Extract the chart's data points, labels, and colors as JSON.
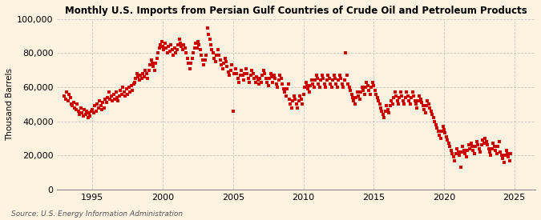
{
  "title": "Monthly U.S. Imports from Persian Gulf Countries of Crude Oil and Petroleum Products",
  "ylabel": "Thousand Barrels",
  "source": "Source: U.S. Energy Information Administration",
  "dot_color": "#cc0000",
  "background_color": "#fdf3e0",
  "grid_color": "#bbbbbb",
  "ylim": [
    0,
    100000
  ],
  "yticks": [
    0,
    20000,
    40000,
    60000,
    80000,
    100000
  ],
  "ytick_labels": [
    "0",
    "20,000",
    "40,000",
    "60,000",
    "80,000",
    "100,000"
  ],
  "xticks": [
    1995,
    2000,
    2005,
    2010,
    2015,
    2020,
    2025
  ],
  "xlim": [
    1992.5,
    2026.5
  ],
  "data": [
    [
      1993.0,
      55000
    ],
    [
      1993.08,
      53000
    ],
    [
      1993.17,
      57000
    ],
    [
      1993.25,
      52000
    ],
    [
      1993.33,
      56000
    ],
    [
      1993.42,
      54000
    ],
    [
      1993.5,
      50000
    ],
    [
      1993.58,
      49000
    ],
    [
      1993.67,
      51000
    ],
    [
      1993.75,
      48000
    ],
    [
      1993.83,
      47000
    ],
    [
      1993.92,
      50000
    ],
    [
      1994.0,
      46000
    ],
    [
      1994.08,
      44000
    ],
    [
      1994.17,
      48000
    ],
    [
      1994.25,
      45000
    ],
    [
      1994.33,
      43000
    ],
    [
      1994.42,
      47000
    ],
    [
      1994.5,
      44000
    ],
    [
      1994.58,
      46000
    ],
    [
      1994.67,
      42000
    ],
    [
      1994.75,
      45000
    ],
    [
      1994.83,
      43000
    ],
    [
      1994.92,
      46000
    ],
    [
      1995.0,
      47000
    ],
    [
      1995.08,
      45000
    ],
    [
      1995.17,
      49000
    ],
    [
      1995.25,
      46000
    ],
    [
      1995.33,
      50000
    ],
    [
      1995.42,
      48000
    ],
    [
      1995.5,
      52000
    ],
    [
      1995.58,
      49000
    ],
    [
      1995.67,
      47000
    ],
    [
      1995.75,
      51000
    ],
    [
      1995.83,
      48000
    ],
    [
      1995.92,
      53000
    ],
    [
      1996.0,
      51000
    ],
    [
      1996.08,
      54000
    ],
    [
      1996.17,
      57000
    ],
    [
      1996.25,
      53000
    ],
    [
      1996.33,
      55000
    ],
    [
      1996.42,
      52000
    ],
    [
      1996.5,
      56000
    ],
    [
      1996.58,
      53000
    ],
    [
      1996.67,
      57000
    ],
    [
      1996.75,
      54000
    ],
    [
      1996.83,
      52000
    ],
    [
      1996.92,
      55000
    ],
    [
      1997.0,
      58000
    ],
    [
      1997.08,
      56000
    ],
    [
      1997.17,
      60000
    ],
    [
      1997.25,
      57000
    ],
    [
      1997.33,
      55000
    ],
    [
      1997.42,
      59000
    ],
    [
      1997.5,
      56000
    ],
    [
      1997.58,
      60000
    ],
    [
      1997.67,
      57000
    ],
    [
      1997.75,
      61000
    ],
    [
      1997.83,
      58000
    ],
    [
      1997.92,
      62000
    ],
    [
      1998.0,
      63000
    ],
    [
      1998.08,
      65000
    ],
    [
      1998.17,
      68000
    ],
    [
      1998.25,
      66000
    ],
    [
      1998.33,
      64000
    ],
    [
      1998.42,
      67000
    ],
    [
      1998.5,
      65000
    ],
    [
      1998.58,
      68000
    ],
    [
      1998.67,
      66000
    ],
    [
      1998.75,
      70000
    ],
    [
      1998.83,
      68000
    ],
    [
      1998.92,
      65000
    ],
    [
      1999.0,
      70000
    ],
    [
      1999.08,
      73000
    ],
    [
      1999.17,
      76000
    ],
    [
      1999.25,
      74000
    ],
    [
      1999.33,
      72000
    ],
    [
      1999.42,
      70000
    ],
    [
      1999.5,
      74000
    ],
    [
      1999.58,
      77000
    ],
    [
      1999.67,
      80000
    ],
    [
      1999.75,
      83000
    ],
    [
      1999.83,
      85000
    ],
    [
      1999.92,
      87000
    ],
    [
      2000.0,
      84000
    ],
    [
      2000.08,
      82000
    ],
    [
      2000.17,
      86000
    ],
    [
      2000.25,
      83000
    ],
    [
      2000.33,
      80000
    ],
    [
      2000.42,
      84000
    ],
    [
      2000.5,
      81000
    ],
    [
      2000.58,
      85000
    ],
    [
      2000.67,
      82000
    ],
    [
      2000.75,
      79000
    ],
    [
      2000.83,
      83000
    ],
    [
      2000.92,
      80000
    ],
    [
      2001.0,
      82000
    ],
    [
      2001.08,
      85000
    ],
    [
      2001.17,
      88000
    ],
    [
      2001.25,
      86000
    ],
    [
      2001.33,
      84000
    ],
    [
      2001.42,
      82000
    ],
    [
      2001.5,
      85000
    ],
    [
      2001.58,
      83000
    ],
    [
      2001.67,
      80000
    ],
    [
      2001.75,
      77000
    ],
    [
      2001.83,
      74000
    ],
    [
      2001.92,
      71000
    ],
    [
      2002.0,
      74000
    ],
    [
      2002.08,
      77000
    ],
    [
      2002.17,
      80000
    ],
    [
      2002.25,
      83000
    ],
    [
      2002.33,
      86000
    ],
    [
      2002.42,
      83000
    ],
    [
      2002.5,
      87000
    ],
    [
      2002.58,
      85000
    ],
    [
      2002.67,
      82000
    ],
    [
      2002.75,
      79000
    ],
    [
      2002.83,
      76000
    ],
    [
      2002.92,
      73000
    ],
    [
      2003.0,
      76000
    ],
    [
      2003.08,
      79000
    ],
    [
      2003.17,
      95000
    ],
    [
      2003.25,
      91000
    ],
    [
      2003.33,
      88000
    ],
    [
      2003.42,
      85000
    ],
    [
      2003.5,
      82000
    ],
    [
      2003.58,
      80000
    ],
    [
      2003.67,
      77000
    ],
    [
      2003.75,
      75000
    ],
    [
      2003.83,
      79000
    ],
    [
      2003.92,
      82000
    ],
    [
      2004.0,
      79000
    ],
    [
      2004.08,
      76000
    ],
    [
      2004.17,
      73000
    ],
    [
      2004.25,
      71000
    ],
    [
      2004.33,
      74000
    ],
    [
      2004.42,
      77000
    ],
    [
      2004.5,
      75000
    ],
    [
      2004.58,
      72000
    ],
    [
      2004.67,
      69000
    ],
    [
      2004.75,
      67000
    ],
    [
      2004.83,
      70000
    ],
    [
      2004.92,
      73000
    ],
    [
      2005.0,
      46000
    ],
    [
      2005.08,
      68000
    ],
    [
      2005.17,
      71000
    ],
    [
      2005.25,
      68000
    ],
    [
      2005.33,
      65000
    ],
    [
      2005.42,
      63000
    ],
    [
      2005.5,
      67000
    ],
    [
      2005.58,
      70000
    ],
    [
      2005.67,
      67000
    ],
    [
      2005.75,
      64000
    ],
    [
      2005.83,
      68000
    ],
    [
      2005.92,
      71000
    ],
    [
      2006.0,
      68000
    ],
    [
      2006.08,
      65000
    ],
    [
      2006.17,
      63000
    ],
    [
      2006.25,
      67000
    ],
    [
      2006.33,
      70000
    ],
    [
      2006.42,
      68000
    ],
    [
      2006.5,
      65000
    ],
    [
      2006.58,
      63000
    ],
    [
      2006.67,
      66000
    ],
    [
      2006.75,
      64000
    ],
    [
      2006.83,
      62000
    ],
    [
      2006.92,
      65000
    ],
    [
      2007.0,
      63000
    ],
    [
      2007.08,
      67000
    ],
    [
      2007.17,
      70000
    ],
    [
      2007.25,
      68000
    ],
    [
      2007.33,
      65000
    ],
    [
      2007.42,
      63000
    ],
    [
      2007.5,
      61000
    ],
    [
      2007.58,
      65000
    ],
    [
      2007.67,
      68000
    ],
    [
      2007.75,
      66000
    ],
    [
      2007.83,
      63000
    ],
    [
      2007.92,
      67000
    ],
    [
      2008.0,
      65000
    ],
    [
      2008.08,
      62000
    ],
    [
      2008.17,
      60000
    ],
    [
      2008.25,
      64000
    ],
    [
      2008.33,
      67000
    ],
    [
      2008.42,
      65000
    ],
    [
      2008.5,
      62000
    ],
    [
      2008.58,
      59000
    ],
    [
      2008.67,
      57000
    ],
    [
      2008.75,
      55000
    ],
    [
      2008.83,
      59000
    ],
    [
      2008.92,
      62000
    ],
    [
      2009.0,
      53000
    ],
    [
      2009.08,
      50000
    ],
    [
      2009.17,
      48000
    ],
    [
      2009.25,
      52000
    ],
    [
      2009.33,
      55000
    ],
    [
      2009.42,
      53000
    ],
    [
      2009.5,
      50000
    ],
    [
      2009.58,
      48000
    ],
    [
      2009.67,
      52000
    ],
    [
      2009.75,
      55000
    ],
    [
      2009.83,
      53000
    ],
    [
      2009.92,
      50000
    ],
    [
      2010.0,
      56000
    ],
    [
      2010.08,
      60000
    ],
    [
      2010.17,
      63000
    ],
    [
      2010.25,
      61000
    ],
    [
      2010.33,
      59000
    ],
    [
      2010.42,
      57000
    ],
    [
      2010.5,
      61000
    ],
    [
      2010.58,
      64000
    ],
    [
      2010.67,
      62000
    ],
    [
      2010.75,
      60000
    ],
    [
      2010.83,
      64000
    ],
    [
      2010.92,
      67000
    ],
    [
      2011.0,
      65000
    ],
    [
      2011.08,
      62000
    ],
    [
      2011.17,
      60000
    ],
    [
      2011.25,
      64000
    ],
    [
      2011.33,
      67000
    ],
    [
      2011.42,
      65000
    ],
    [
      2011.5,
      62000
    ],
    [
      2011.58,
      60000
    ],
    [
      2011.67,
      64000
    ],
    [
      2011.75,
      67000
    ],
    [
      2011.83,
      65000
    ],
    [
      2011.92,
      62000
    ],
    [
      2012.0,
      60000
    ],
    [
      2012.08,
      64000
    ],
    [
      2012.17,
      67000
    ],
    [
      2012.25,
      65000
    ],
    [
      2012.33,
      62000
    ],
    [
      2012.42,
      60000
    ],
    [
      2012.5,
      64000
    ],
    [
      2012.58,
      67000
    ],
    [
      2012.67,
      65000
    ],
    [
      2012.75,
      62000
    ],
    [
      2012.83,
      60000
    ],
    [
      2012.92,
      64000
    ],
    [
      2013.0,
      80000
    ],
    [
      2013.08,
      67000
    ],
    [
      2013.17,
      62000
    ],
    [
      2013.25,
      60000
    ],
    [
      2013.33,
      58000
    ],
    [
      2013.42,
      56000
    ],
    [
      2013.5,
      54000
    ],
    [
      2013.58,
      52000
    ],
    [
      2013.67,
      50000
    ],
    [
      2013.75,
      54000
    ],
    [
      2013.83,
      57000
    ],
    [
      2013.92,
      55000
    ],
    [
      2014.0,
      53000
    ],
    [
      2014.08,
      57000
    ],
    [
      2014.17,
      60000
    ],
    [
      2014.25,
      58000
    ],
    [
      2014.33,
      56000
    ],
    [
      2014.42,
      60000
    ],
    [
      2014.5,
      63000
    ],
    [
      2014.58,
      61000
    ],
    [
      2014.67,
      58000
    ],
    [
      2014.75,
      56000
    ],
    [
      2014.83,
      60000
    ],
    [
      2014.92,
      63000
    ],
    [
      2015.0,
      61000
    ],
    [
      2015.08,
      58000
    ],
    [
      2015.17,
      56000
    ],
    [
      2015.25,
      54000
    ],
    [
      2015.33,
      52000
    ],
    [
      2015.42,
      50000
    ],
    [
      2015.5,
      48000
    ],
    [
      2015.58,
      46000
    ],
    [
      2015.67,
      44000
    ],
    [
      2015.75,
      42000
    ],
    [
      2015.83,
      46000
    ],
    [
      2015.92,
      49000
    ],
    [
      2016.0,
      47000
    ],
    [
      2016.08,
      45000
    ],
    [
      2016.17,
      49000
    ],
    [
      2016.25,
      52000
    ],
    [
      2016.33,
      50000
    ],
    [
      2016.42,
      54000
    ],
    [
      2016.5,
      57000
    ],
    [
      2016.58,
      55000
    ],
    [
      2016.67,
      52000
    ],
    [
      2016.75,
      50000
    ],
    [
      2016.83,
      54000
    ],
    [
      2016.92,
      57000
    ],
    [
      2017.0,
      55000
    ],
    [
      2017.08,
      52000
    ],
    [
      2017.17,
      50000
    ],
    [
      2017.25,
      54000
    ],
    [
      2017.33,
      57000
    ],
    [
      2017.42,
      55000
    ],
    [
      2017.5,
      52000
    ],
    [
      2017.58,
      50000
    ],
    [
      2017.67,
      54000
    ],
    [
      2017.75,
      57000
    ],
    [
      2017.83,
      55000
    ],
    [
      2017.92,
      52000
    ],
    [
      2018.0,
      50000
    ],
    [
      2018.08,
      48000
    ],
    [
      2018.17,
      52000
    ],
    [
      2018.25,
      55000
    ],
    [
      2018.33,
      53000
    ],
    [
      2018.42,
      51000
    ],
    [
      2018.5,
      49000
    ],
    [
      2018.58,
      47000
    ],
    [
      2018.67,
      45000
    ],
    [
      2018.75,
      49000
    ],
    [
      2018.83,
      52000
    ],
    [
      2018.92,
      50000
    ],
    [
      2019.0,
      48000
    ],
    [
      2019.08,
      46000
    ],
    [
      2019.17,
      44000
    ],
    [
      2019.25,
      42000
    ],
    [
      2019.33,
      40000
    ],
    [
      2019.42,
      38000
    ],
    [
      2019.5,
      36000
    ],
    [
      2019.58,
      34000
    ],
    [
      2019.67,
      32000
    ],
    [
      2019.75,
      30000
    ],
    [
      2019.83,
      34000
    ],
    [
      2019.92,
      37000
    ],
    [
      2020.0,
      35000
    ],
    [
      2020.08,
      33000
    ],
    [
      2020.17,
      31000
    ],
    [
      2020.25,
      29000
    ],
    [
      2020.33,
      27000
    ],
    [
      2020.42,
      25000
    ],
    [
      2020.5,
      23000
    ],
    [
      2020.58,
      21000
    ],
    [
      2020.67,
      19000
    ],
    [
      2020.75,
      17000
    ],
    [
      2020.83,
      21000
    ],
    [
      2020.92,
      24000
    ],
    [
      2021.0,
      22000
    ],
    [
      2021.08,
      20000
    ],
    [
      2021.17,
      13000
    ],
    [
      2021.25,
      22000
    ],
    [
      2021.33,
      25000
    ],
    [
      2021.42,
      23000
    ],
    [
      2021.5,
      21000
    ],
    [
      2021.58,
      19000
    ],
    [
      2021.67,
      23000
    ],
    [
      2021.75,
      26000
    ],
    [
      2021.83,
      24000
    ],
    [
      2021.92,
      27000
    ],
    [
      2022.0,
      25000
    ],
    [
      2022.08,
      23000
    ],
    [
      2022.17,
      21000
    ],
    [
      2022.25,
      25000
    ],
    [
      2022.33,
      28000
    ],
    [
      2022.42,
      26000
    ],
    [
      2022.5,
      24000
    ],
    [
      2022.58,
      22000
    ],
    [
      2022.67,
      26000
    ],
    [
      2022.75,
      29000
    ],
    [
      2022.83,
      27000
    ],
    [
      2022.92,
      30000
    ],
    [
      2023.0,
      28000
    ],
    [
      2023.08,
      26000
    ],
    [
      2023.17,
      24000
    ],
    [
      2023.25,
      22000
    ],
    [
      2023.33,
      20000
    ],
    [
      2023.42,
      24000
    ],
    [
      2023.5,
      27000
    ],
    [
      2023.58,
      25000
    ],
    [
      2023.67,
      23000
    ],
    [
      2023.75,
      21000
    ],
    [
      2023.83,
      25000
    ],
    [
      2023.92,
      28000
    ],
    [
      2024.0,
      22000
    ],
    [
      2024.08,
      20000
    ],
    [
      2024.17,
      18000
    ],
    [
      2024.25,
      16000
    ],
    [
      2024.33,
      20000
    ],
    [
      2024.42,
      23000
    ],
    [
      2024.5,
      21000
    ],
    [
      2024.58,
      19000
    ],
    [
      2024.67,
      17000
    ],
    [
      2024.75,
      21000
    ]
  ]
}
